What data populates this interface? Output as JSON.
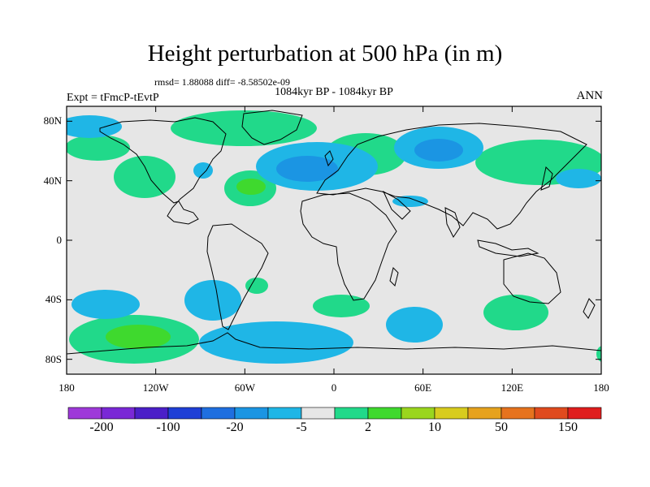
{
  "title": "Height perturbation at 500 hPa (in m)",
  "stats": "rmsd= 1.88088 diff= -8.58502e-09",
  "period": "1084kyr BP - 1084kyr BP",
  "experiment": "Expt = tFmcP-tEvtP",
  "season": "ANN",
  "map": {
    "lon_range": [
      -180,
      180
    ],
    "lat_range": [
      -90,
      90
    ],
    "lat_ticks": [
      {
        "value": 80,
        "label": "80N"
      },
      {
        "value": 40,
        "label": "40N"
      },
      {
        "value": 0,
        "label": "0"
      },
      {
        "value": -40,
        "label": "40S"
      },
      {
        "value": -80,
        "label": "80S"
      }
    ],
    "lon_ticks": [
      {
        "value": -180,
        "label": "180"
      },
      {
        "value": -120,
        "label": "120W"
      },
      {
        "value": -60,
        "label": "60W"
      },
      {
        "value": 0,
        "label": "0"
      },
      {
        "value": 60,
        "label": "60E"
      },
      {
        "value": 120,
        "label": "120E"
      },
      {
        "value": 180,
        "label": "180"
      }
    ],
    "background_color": "#e6e6e6"
  },
  "colorbar": {
    "colors": [
      "#9e39d9",
      "#7a28d6",
      "#4b1fc8",
      "#1f3fd6",
      "#1f6fe0",
      "#1b95e3",
      "#1fb6e6",
      "#e6e6e6",
      "#21d98a",
      "#3fd92e",
      "#9ad61e",
      "#d8cc1e",
      "#e6a21e",
      "#e6731e",
      "#e04a1e",
      "#e01e1e"
    ],
    "labels": [
      "-200",
      "-100",
      "-20",
      "-5",
      "2",
      "10",
      "50",
      "150"
    ]
  }
}
